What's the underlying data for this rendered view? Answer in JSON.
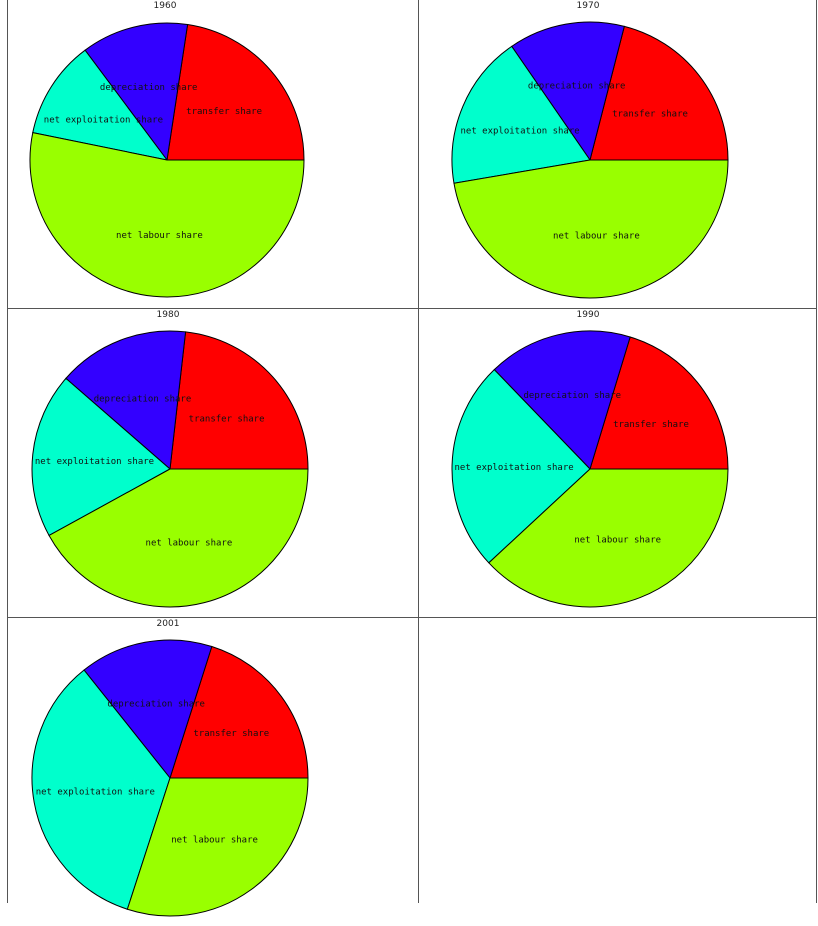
{
  "colors": {
    "net labour share": "#99ff00",
    "transfer share": "#ff0000",
    "depreciation share": "#3300ff",
    "net exploitation share": "#00ffcc",
    "outline": "#000000"
  },
  "chart_data": [
    {
      "type": "pie",
      "title": "1960",
      "slices": [
        {
          "label": "transfer share",
          "value": 22.6
        },
        {
          "label": "depreciation share",
          "value": 12.6
        },
        {
          "label": "net exploitation share",
          "value": 11.6
        },
        {
          "label": "net labour share",
          "value": 53.2
        }
      ]
    },
    {
      "type": "pie",
      "title": "1970",
      "slices": [
        {
          "label": "transfer share",
          "value": 21.0
        },
        {
          "label": "depreciation share",
          "value": 13.6
        },
        {
          "label": "net exploitation share",
          "value": 18.1
        },
        {
          "label": "net labour share",
          "value": 47.3
        }
      ]
    },
    {
      "type": "pie",
      "title": "1980",
      "slices": [
        {
          "label": "transfer share",
          "value": 23.2
        },
        {
          "label": "depreciation share",
          "value": 15.4
        },
        {
          "label": "net exploitation share",
          "value": 19.4
        },
        {
          "label": "net labour share",
          "value": 42.0
        }
      ]
    },
    {
      "type": "pie",
      "title": "1990",
      "slices": [
        {
          "label": "transfer share",
          "value": 20.3
        },
        {
          "label": "depreciation share",
          "value": 16.9
        },
        {
          "label": "net exploitation share",
          "value": 24.7
        },
        {
          "label": "net labour share",
          "value": 38.1
        }
      ]
    },
    {
      "type": "pie",
      "title": "2001",
      "slices": [
        {
          "label": "transfer share",
          "value": 20.1
        },
        {
          "label": "depreciation share",
          "value": 15.6
        },
        {
          "label": "net exploitation share",
          "value": 34.3
        },
        {
          "label": "net labour share",
          "value": 30.0
        }
      ]
    }
  ]
}
